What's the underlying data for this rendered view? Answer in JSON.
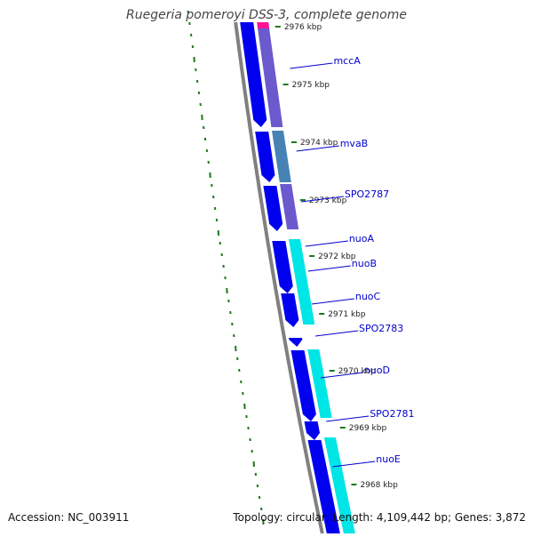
{
  "title": "Ruegeria pomeroyi DSS-3, complete genome",
  "accession": "Accession: NC_003911",
  "summary": "Topology: circular; Length: 4,109,442 bp; Genes: 3,872",
  "colors": {
    "backbone": "#808080",
    "forward_strand": "#0000ee",
    "cds_purple": "#6a5acd",
    "cds_steel": "#4682b4",
    "cds_cyan": "#00e5e5",
    "rna_pink": "#ff1493",
    "tick": "#1a7a1a",
    "label": "#0000cc",
    "kbp_label": "#222222"
  },
  "kbp_ticks": [
    {
      "label": "2976 kbp"
    },
    {
      "label": "2975 kbp"
    },
    {
      "label": "2974 kbp"
    },
    {
      "label": "2973 kbp"
    },
    {
      "label": "2972 kbp"
    },
    {
      "label": "2971 kbp"
    },
    {
      "label": "2970 kbp"
    },
    {
      "label": "2969 kbp"
    },
    {
      "label": "2968 kbp"
    }
  ],
  "genes": [
    {
      "label": "mccA"
    },
    {
      "label": "mvaB"
    },
    {
      "label": "SPO2787"
    },
    {
      "label": "nuoA"
    },
    {
      "label": "nuoB"
    },
    {
      "label": "nuoC"
    },
    {
      "label": "SPO2783"
    },
    {
      "label": "nuoD"
    },
    {
      "label": "SPO2781"
    },
    {
      "label": "nuoE"
    }
  ]
}
